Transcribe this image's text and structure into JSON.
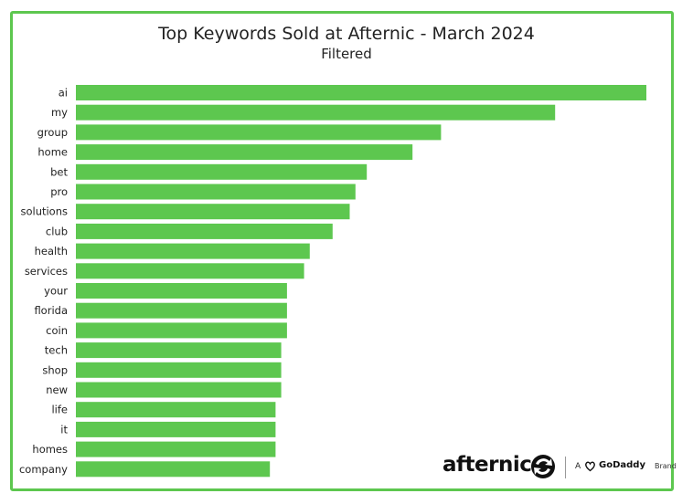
{
  "chart_data": {
    "type": "bar",
    "orientation": "horizontal",
    "title": "Top Keywords Sold at Afternic - March 2024",
    "subtitle": "Filtered",
    "categories": [
      "ai",
      "my",
      "group",
      "home",
      "bet",
      "pro",
      "solutions",
      "club",
      "health",
      "services",
      "your",
      "florida",
      "coin",
      "tech",
      "shop",
      "new",
      "life",
      "it",
      "homes",
      "company"
    ],
    "values": [
      100,
      84,
      64,
      59,
      51,
      49,
      48,
      45,
      41,
      40,
      37,
      37,
      37,
      36,
      36,
      36,
      35,
      35,
      35,
      34
    ],
    "xlim": [
      0,
      100
    ],
    "bar_color": "#5dc74f",
    "grid": false,
    "legend": "none"
  },
  "branding": {
    "logo_text": "afternic",
    "brand_prefix": "A",
    "brand_name": "GoDaddy",
    "brand_suffix": "Brand"
  },
  "colors": {
    "frame": "#5dc74f",
    "bar": "#5dc74f"
  }
}
